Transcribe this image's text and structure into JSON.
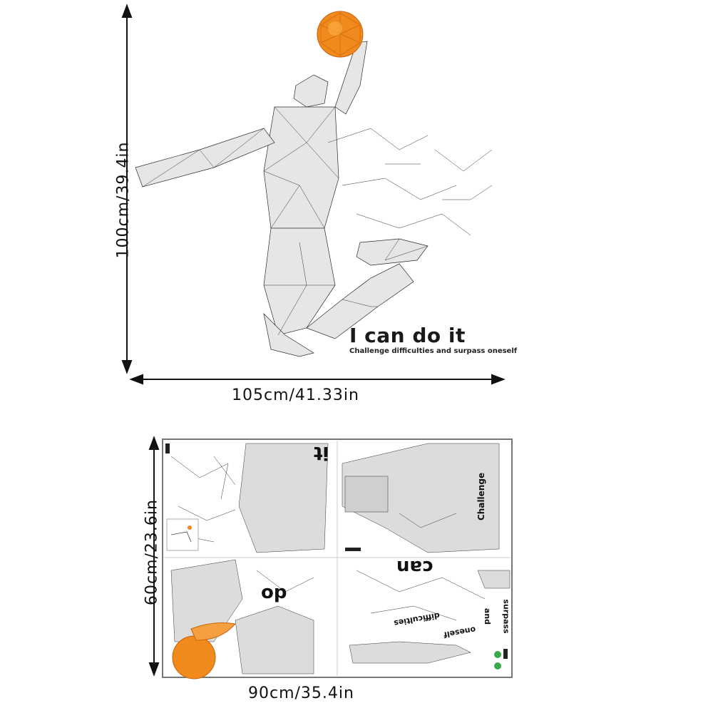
{
  "top_figure": {
    "height_label": "100cm/39.4in",
    "width_label": "105cm/41.33in",
    "slogan": "I can do it",
    "subslogan": "Challenge difficulties and surpass oneself"
  },
  "sheet": {
    "height_label": "60cm/23.6in",
    "width_label": "90cm/35.4in",
    "fragments": {
      "it": "it",
      "do": "do",
      "can": "can",
      "challenge": "Challenge",
      "difficulties": "difficulties",
      "oneself": "oneself",
      "and": "and",
      "surpass": "surpass"
    }
  },
  "colors": {
    "ball": "#f08a1c",
    "mesh": "#333333",
    "arrow": "#111111"
  }
}
